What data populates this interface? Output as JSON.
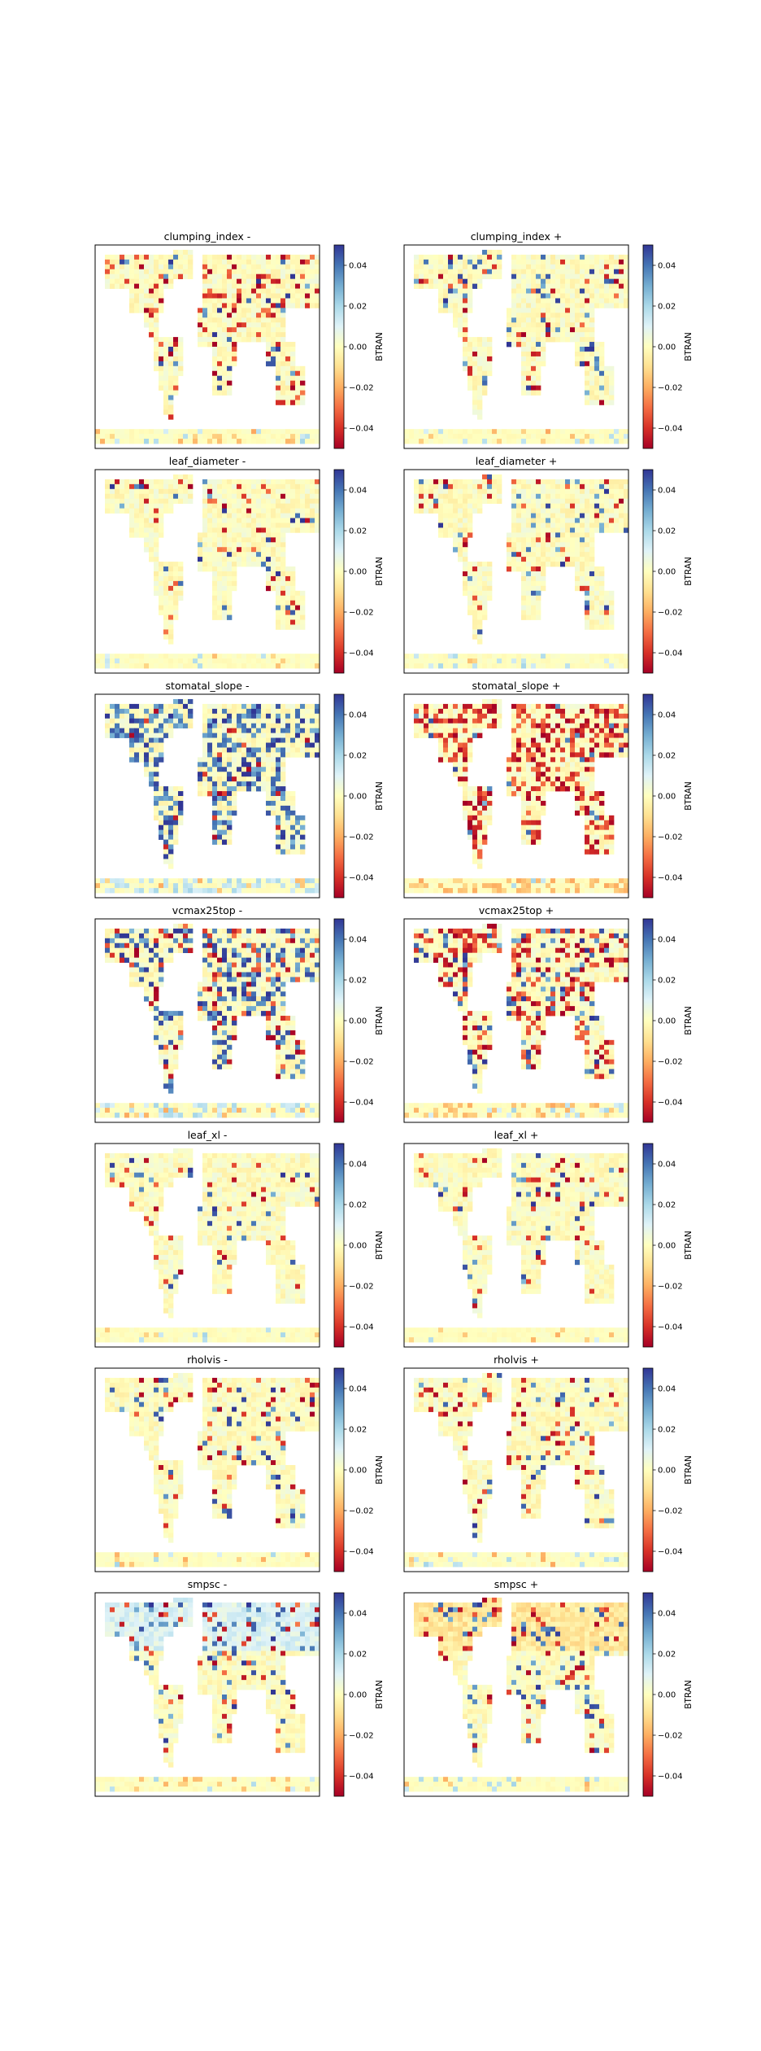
{
  "chart_data": {
    "type": "heatmap",
    "layout": "7 rows x 2 columns of global map panels",
    "colormap": [
      "#a50026",
      "#d73027",
      "#f46d43",
      "#fdae61",
      "#fee090",
      "#ffffbf",
      "#e0f3f8",
      "#abd9e9",
      "#74add1",
      "#4575b4",
      "#313695"
    ],
    "color_range": [
      -0.05,
      0.05
    ],
    "colorbar_label": "BTRAN",
    "colorbar_ticks": [
      "0.04",
      "0.02",
      "0.00",
      "−0.02",
      "−0.04"
    ],
    "colorbar_tick_values": [
      0.04,
      0.02,
      0.0,
      -0.02,
      -0.04
    ],
    "grid": false,
    "panels": [
      {
        "title": "clumping_index -",
        "intensity": 0.3,
        "bias": -0.45
      },
      {
        "title": "clumping_index +",
        "intensity": 0.25,
        "bias": 0.1
      },
      {
        "title": "leaf_diameter -",
        "intensity": 0.18,
        "bias": -0.1
      },
      {
        "title": "leaf_diameter +",
        "intensity": 0.2,
        "bias": 0.25
      },
      {
        "title": "stomatal_slope -",
        "intensity": 0.75,
        "bias": 0.8
      },
      {
        "title": "stomatal_slope +",
        "intensity": 0.75,
        "bias": -0.85
      },
      {
        "title": "vcmax25top -",
        "intensity": 0.7,
        "bias": 0.35
      },
      {
        "title": "vcmax25top +",
        "intensity": 0.7,
        "bias": -0.35
      },
      {
        "title": "leaf_xl -",
        "intensity": 0.15,
        "bias": 0.0
      },
      {
        "title": "leaf_xl +",
        "intensity": 0.18,
        "bias": -0.2
      },
      {
        "title": "rholvis -",
        "intensity": 0.22,
        "bias": -0.1
      },
      {
        "title": "rholvis +",
        "intensity": 0.25,
        "bias": -0.2
      },
      {
        "title": "smpsc -",
        "intensity": 0.3,
        "bias": 0.0,
        "north_shift": 0.35
      },
      {
        "title": "smpsc +",
        "intensity": 0.28,
        "bias": 0.1,
        "north_shift": -0.25
      }
    ]
  }
}
